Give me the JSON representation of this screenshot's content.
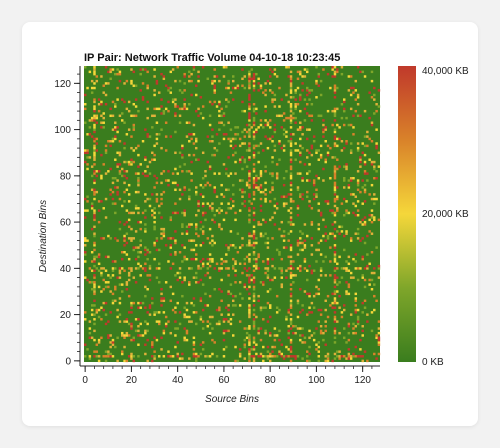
{
  "chart_data": {
    "type": "heatmap",
    "title": "IP Pair: Network Traffic Volume 04-10-18 10:23:45",
    "xlabel": "Source Bins",
    "ylabel": "Destination Bins",
    "xlim": [
      0,
      127
    ],
    "ylim": [
      0,
      127
    ],
    "x_ticks": [
      "0",
      "20",
      "40",
      "60",
      "80",
      "100",
      "120"
    ],
    "y_ticks": [
      "0",
      "20",
      "40",
      "60",
      "80",
      "100",
      "120"
    ],
    "grid_size": 128,
    "colorbar": {
      "min": 0,
      "max": 40000,
      "unit": "KB",
      "labels": [
        "40,000 KB",
        "20,000 KB",
        "0 KB"
      ],
      "colors": [
        "#3a7d1e",
        "#7fa62a",
        "#f5d73a",
        "#d9822a",
        "#c0392b"
      ]
    },
    "background_value": 0,
    "vertical_hot_lines": [
      {
        "x": 4,
        "y_range": [
          0,
          127
        ]
      },
      {
        "x": 71,
        "y_range": [
          0,
          127
        ]
      },
      {
        "x": 73,
        "y_range": [
          0,
          127
        ]
      },
      {
        "x": 89,
        "y_range": [
          0,
          127
        ]
      },
      {
        "x": 108,
        "y_range": [
          0,
          127
        ]
      }
    ],
    "horizontal_hot_lines": [
      {
        "y": 2,
        "x_range": [
          0,
          127
        ]
      },
      {
        "y": 40,
        "x_range": [
          0,
          127
        ]
      }
    ]
  }
}
